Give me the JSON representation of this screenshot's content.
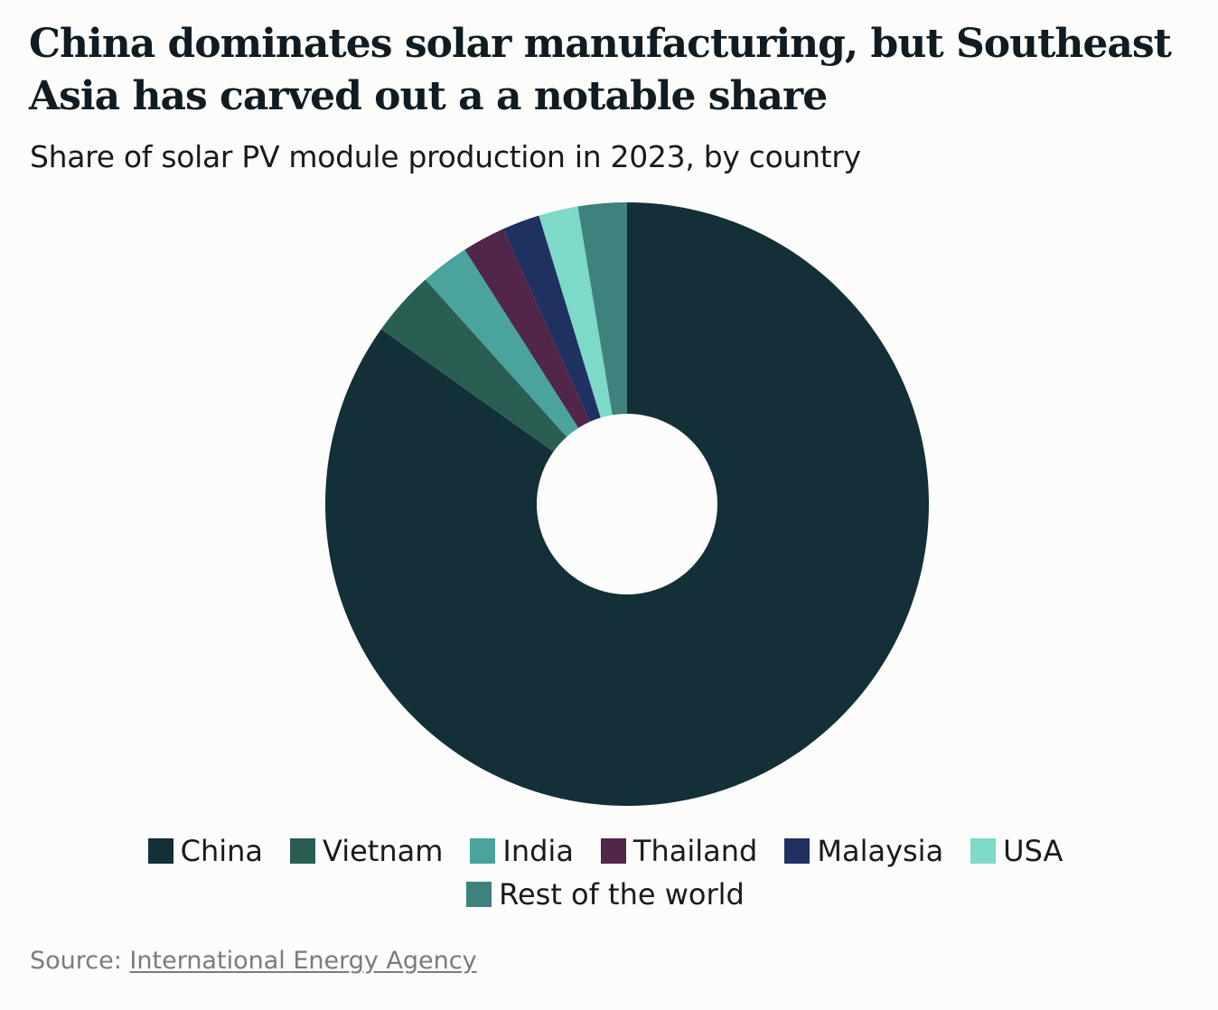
{
  "title": "China dominates solar manufacturing, but Southeast Asia has carved out a a notable share",
  "subtitle": "Share of solar PV module production in 2023, by country",
  "source": {
    "prefix": "Source: ",
    "link_text": "International Energy Agency"
  },
  "chart_data": {
    "type": "pie",
    "variant": "donut",
    "title": "China dominates solar manufacturing, but Southeast Asia has carved out a a notable share",
    "subtitle": "Share of solar PV module production in 2023, by country",
    "legend_position": "bottom",
    "slices": [
      {
        "name": "China",
        "value": 84.5,
        "color": "#132f38"
      },
      {
        "name": "Vietnam",
        "value": 3.5,
        "color": "#2a5e53"
      },
      {
        "name": "India",
        "value": 2.6,
        "color": "#4aa39c"
      },
      {
        "name": "Thailand",
        "value": 2.3,
        "color": "#512648"
      },
      {
        "name": "Malaysia",
        "value": 2.0,
        "color": "#1e3160"
      },
      {
        "name": "USA",
        "value": 2.1,
        "color": "#7dd9c8"
      },
      {
        "name": "Rest of the world",
        "value": 2.6,
        "color": "#3f817c"
      }
    ]
  }
}
